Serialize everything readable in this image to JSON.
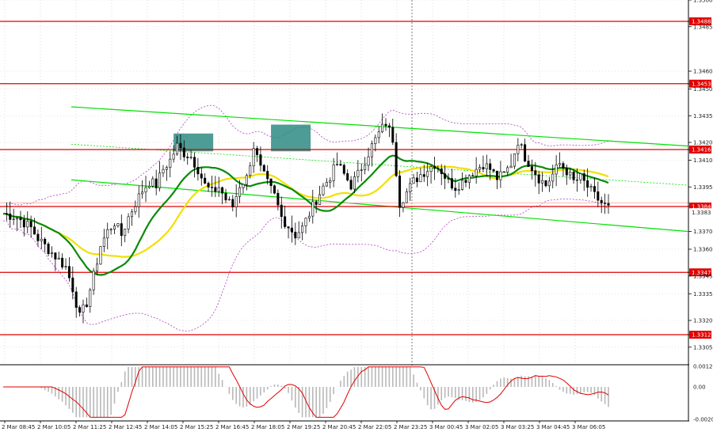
{
  "chart_data": [
    {
      "type": "candlestick",
      "y_ticks": [
        "1.3500",
        "1.3485",
        "1.3460",
        "1.3450",
        "1.3435",
        "1.3420",
        "1.3410",
        "1.3395",
        "1.3370",
        "1.3360",
        "1.3345",
        "1.3335",
        "1.3320",
        "1.3305"
      ],
      "ylim": [
        1.3296,
        1.35
      ],
      "x_ticks": [
        "2 Mar 08:45",
        "2 Mar 10:05",
        "2 Mar 11:25",
        "2 Mar 12:45",
        "2 Mar 14:05",
        "2 Mar 15:25",
        "2 Mar 16:45",
        "2 Mar 18:05",
        "2 Mar 19:25",
        "2 Mar 20:45",
        "2 Mar 22:05",
        "2 Mar 23:25",
        "3 Mar 00:45",
        "3 Mar 02:05",
        "3 Mar 03:25",
        "3 Mar 04:45",
        "3 Mar 06:05"
      ],
      "current_price_label": "1.3383",
      "level_labels": [
        "1.3488",
        "1.3453",
        "1.3416",
        "1.3384",
        "1.3347",
        "1.3312"
      ],
      "levels": [
        1.3488,
        1.3453,
        1.3416,
        1.3384,
        1.3347,
        1.3312
      ],
      "price_path": [
        [
          0,
          1.338
        ],
        [
          2,
          1.3378
        ],
        [
          4,
          1.3372
        ],
        [
          5,
          1.3366
        ],
        [
          7,
          1.3358
        ],
        [
          9,
          1.335
        ],
        [
          10,
          1.3338
        ],
        [
          11,
          1.3322
        ],
        [
          12,
          1.333
        ],
        [
          13,
          1.3345
        ],
        [
          14,
          1.3362
        ],
        [
          15,
          1.337
        ],
        [
          16,
          1.3375
        ],
        [
          17,
          1.3368
        ],
        [
          18,
          1.3378
        ],
        [
          19,
          1.3386
        ],
        [
          20,
          1.3393
        ],
        [
          21,
          1.3398
        ],
        [
          22,
          1.3396
        ],
        [
          23,
          1.3405
        ],
        [
          24,
          1.341
        ],
        [
          25,
          1.3418
        ],
        [
          26,
          1.3414
        ],
        [
          27,
          1.3412
        ],
        [
          28,
          1.3405
        ],
        [
          29,
          1.3396
        ],
        [
          30,
          1.3392
        ],
        [
          31,
          1.3395
        ],
        [
          32,
          1.3388
        ],
        [
          33,
          1.3384
        ],
        [
          34,
          1.3396
        ],
        [
          35,
          1.34
        ],
        [
          36,
          1.3418
        ],
        [
          37,
          1.3405
        ],
        [
          38,
          1.3397
        ],
        [
          39,
          1.339
        ],
        [
          40,
          1.3378
        ],
        [
          41,
          1.3373
        ],
        [
          42,
          1.3368
        ],
        [
          43,
          1.3372
        ],
        [
          44,
          1.338
        ],
        [
          45,
          1.3388
        ],
        [
          46,
          1.3395
        ],
        [
          47,
          1.3401
        ],
        [
          48,
          1.3408
        ],
        [
          49,
          1.3402
        ],
        [
          50,
          1.3396
        ],
        [
          51,
          1.3402
        ],
        [
          52,
          1.341
        ],
        [
          53,
          1.3418
        ],
        [
          54,
          1.3425
        ],
        [
          55,
          1.3431
        ],
        [
          56,
          1.3422
        ],
        [
          57,
          1.3386
        ],
        [
          58,
          1.3392
        ],
        [
          59,
          1.3398
        ],
        [
          60,
          1.3402
        ],
        [
          61,
          1.3405
        ],
        [
          62,
          1.3408
        ],
        [
          63,
          1.3404
        ],
        [
          64,
          1.3398
        ],
        [
          65,
          1.3395
        ],
        [
          66,
          1.3398
        ],
        [
          67,
          1.3402
        ],
        [
          68,
          1.3405
        ],
        [
          69,
          1.3408
        ],
        [
          70,
          1.3405
        ],
        [
          71,
          1.34
        ],
        [
          72,
          1.3402
        ],
        [
          73,
          1.3408
        ],
        [
          74,
          1.3421
        ],
        [
          75,
          1.3412
        ],
        [
          76,
          1.3406
        ],
        [
          77,
          1.34
        ],
        [
          78,
          1.3396
        ],
        [
          79,
          1.3402
        ],
        [
          80,
          1.3408
        ],
        [
          81,
          1.3404
        ],
        [
          82,
          1.3398
        ],
        [
          83,
          1.34
        ],
        [
          84,
          1.3395
        ],
        [
          85,
          1.339
        ],
        [
          86,
          1.3386
        ],
        [
          87,
          1.3383
        ]
      ]
    },
    {
      "type": "histogram",
      "y_ticks": [
        "0.00129",
        "0.00",
        "-0.00203"
      ],
      "ylim": [
        -0.00203,
        0.00129
      ]
    }
  ],
  "colors": {
    "level_line": "#e00000",
    "trend_channel": "#00e000",
    "ma_fast": "#0a8a0a",
    "ma_slow": "#f2e000",
    "bands": "#b040c0",
    "candles": "#000000",
    "highlight_box": "#2e8b82",
    "histogram": "#b8b8b8",
    "signal_line": "#e00000"
  }
}
